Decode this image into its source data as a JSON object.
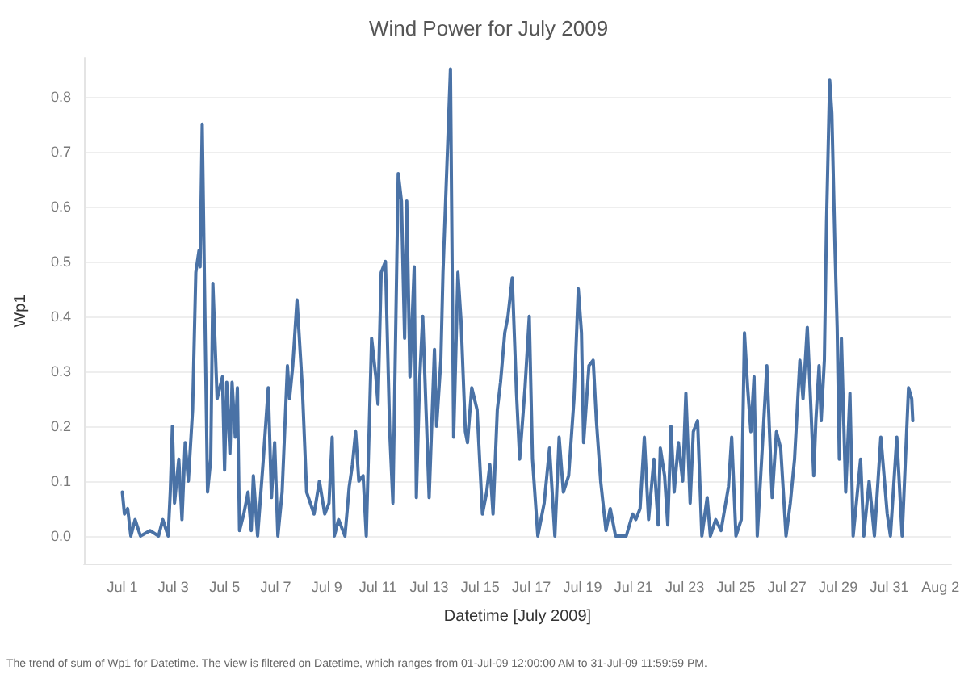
{
  "chart_data": {
    "type": "line",
    "title": "Wind Power for July 2009",
    "xlabel": "Datetime [July 2009]",
    "ylabel": "Wp1",
    "annotations": [
      "The trend of sum of Wp1 for Datetime. The view is filtered on Datetime, which ranges from 01-Jul-09 12:00:00 AM to 31-Jul-09 11:59:59 PM."
    ],
    "x": [
      "2009-07-01T00:00",
      "2009-07-01T02:00",
      "2009-07-01T05:00",
      "2009-07-01T08:00",
      "2009-07-01T12:00",
      "2009-07-01T17:00",
      "2009-07-02T02:00",
      "2009-07-02T10:00",
      "2009-07-02T14:00",
      "2009-07-02T19:00",
      "2009-07-02T21:00",
      "2009-07-02T23:00",
      "2009-07-03T01:00",
      "2009-07-03T05:00",
      "2009-07-03T08:00",
      "2009-07-03T11:00",
      "2009-07-03T14:00",
      "2009-07-03T18:00",
      "2009-07-03T21:00",
      "2009-07-04T00:00",
      "2009-07-04T01:00",
      "2009-07-04T03:00",
      "2009-07-04T06:00",
      "2009-07-04T08:00",
      "2009-07-04T11:00",
      "2009-07-04T13:00",
      "2009-07-04T17:00",
      "2009-07-04T22:00",
      "2009-07-05T00:00",
      "2009-07-05T02:00",
      "2009-07-05T05:00",
      "2009-07-05T07:00",
      "2009-07-05T10:00",
      "2009-07-05T12:00",
      "2009-07-05T14:00",
      "2009-07-05T18:00",
      "2009-07-05T22:00",
      "2009-07-06T01:00",
      "2009-07-06T03:00",
      "2009-07-06T07:00",
      "2009-07-06T12:00",
      "2009-07-06T17:00",
      "2009-07-06T20:00",
      "2009-07-06T23:00",
      "2009-07-07T02:00",
      "2009-07-07T06:00",
      "2009-07-07T11:00",
      "2009-07-07T13:00",
      "2009-07-07T16:00",
      "2009-07-07T20:00",
      "2009-07-08T01:00",
      "2009-07-08T05:00",
      "2009-07-08T12:00",
      "2009-07-08T17:00",
      "2009-07-08T22:00",
      "2009-07-09T02:00",
      "2009-07-09T05:00",
      "2009-07-09T07:00",
      "2009-07-09T11:00",
      "2009-07-09T17:00",
      "2009-07-09T21:00",
      "2009-07-10T00:00",
      "2009-07-10T03:00",
      "2009-07-10T06:00",
      "2009-07-10T10:00",
      "2009-07-10T13:00",
      "2009-07-10T18:00",
      "2009-07-10T22:00",
      "2009-07-11T00:00",
      "2009-07-11T03:00",
      "2009-07-11T07:00",
      "2009-07-11T11:00",
      "2009-07-11T14:00",
      "2009-07-11T19:00",
      "2009-07-11T22:00",
      "2009-07-12T01:00",
      "2009-07-12T03:00",
      "2009-07-12T06:00",
      "2009-07-12T10:00",
      "2009-07-12T12:00",
      "2009-07-12T15:00",
      "2009-07-12T18:00",
      "2009-07-13T00:00",
      "2009-07-13T05:00",
      "2009-07-13T07:00",
      "2009-07-13T11:00",
      "2009-07-13T13:00",
      "2009-07-13T20:00",
      "2009-07-13T23:00",
      "2009-07-14T03:00",
      "2009-07-14T06:00",
      "2009-07-14T10:00",
      "2009-07-14T12:00",
      "2009-07-14T16:00",
      "2009-07-14T21:00",
      "2009-07-15T02:00",
      "2009-07-15T06:00",
      "2009-07-15T09:00",
      "2009-07-15T12:00",
      "2009-07-15T16:00",
      "2009-07-15T19:00",
      "2009-07-15T23:00",
      "2009-07-16T02:00",
      "2009-07-16T06:00",
      "2009-07-16T10:00",
      "2009-07-16T13:00",
      "2009-07-16T18:00",
      "2009-07-16T22:00",
      "2009-07-17T01:00",
      "2009-07-17T06:00",
      "2009-07-17T12:00",
      "2009-07-17T17:00",
      "2009-07-17T22:00",
      "2009-07-18T02:00",
      "2009-07-18T06:00",
      "2009-07-18T11:00",
      "2009-07-18T16:00",
      "2009-07-18T20:00",
      "2009-07-18T23:00",
      "2009-07-19T01:00",
      "2009-07-19T06:00",
      "2009-07-19T10:00",
      "2009-07-19T13:00",
      "2009-07-19T17:00",
      "2009-07-19T22:00",
      "2009-07-20T02:00",
      "2009-07-20T07:00",
      "2009-07-20T17:00",
      "2009-07-20T23:00",
      "2009-07-21T02:00",
      "2009-07-21T06:00",
      "2009-07-21T10:00",
      "2009-07-21T14:00",
      "2009-07-21T19:00",
      "2009-07-21T23:00",
      "2009-07-22T01:00",
      "2009-07-22T05:00",
      "2009-07-22T08:00",
      "2009-07-22T11:00",
      "2009-07-22T14:00",
      "2009-07-22T18:00",
      "2009-07-22T22:00",
      "2009-07-23T01:00",
      "2009-07-23T05:00",
      "2009-07-23T08:00",
      "2009-07-23T12:00",
      "2009-07-23T16:00",
      "2009-07-23T21:00",
      "2009-07-24T00:00",
      "2009-07-24T05:00",
      "2009-07-24T10:00",
      "2009-07-24T17:00",
      "2009-07-24T20:00",
      "2009-07-25T00:00",
      "2009-07-25T05:00",
      "2009-07-25T08:00",
      "2009-07-25T11:00",
      "2009-07-25T14:00",
      "2009-07-25T17:00",
      "2009-07-25T20:00",
      "2009-07-26T01:00",
      "2009-07-26T05:00",
      "2009-07-26T10:00",
      "2009-07-26T14:00",
      "2009-07-26T18:00",
      "2009-07-26T23:00",
      "2009-07-27T03:00",
      "2009-07-27T07:00",
      "2009-07-27T12:00",
      "2009-07-27T15:00",
      "2009-07-27T19:00",
      "2009-07-27T22:00",
      "2009-07-28T01:00",
      "2009-07-28T03:00",
      "2009-07-28T06:00",
      "2009-07-28T08:00",
      "2009-07-28T11:00",
      "2009-07-28T13:00",
      "2009-07-28T16:00",
      "2009-07-28T18:00",
      "2009-07-28T21:00",
      "2009-07-28T23:00",
      "2009-07-29T01:00",
      "2009-07-29T03:00",
      "2009-07-29T07:00",
      "2009-07-29T11:00",
      "2009-07-29T14:00",
      "2009-07-29T21:00",
      "2009-07-30T00:00",
      "2009-07-30T05:00",
      "2009-07-30T10:00",
      "2009-07-30T16:00",
      "2009-07-30T22:00",
      "2009-07-31T01:00",
      "2009-07-31T07:00",
      "2009-07-31T12:00",
      "2009-07-31T18:00",
      "2009-07-31T21:00",
      "2009-07-31T22:00"
    ],
    "series": [
      {
        "color": "#4a72a6",
        "values": [
          0.08,
          0.04,
          0.05,
          0.0,
          0.03,
          0.0,
          0.01,
          0.0,
          0.03,
          0.0,
          0.08,
          0.2,
          0.06,
          0.14,
          0.03,
          0.17,
          0.1,
          0.23,
          0.48,
          0.52,
          0.49,
          0.75,
          0.34,
          0.08,
          0.14,
          0.46,
          0.25,
          0.29,
          0.12,
          0.28,
          0.15,
          0.28,
          0.18,
          0.27,
          0.01,
          0.04,
          0.08,
          0.01,
          0.11,
          0.0,
          0.13,
          0.27,
          0.07,
          0.17,
          0.0,
          0.08,
          0.31,
          0.25,
          0.31,
          0.43,
          0.27,
          0.08,
          0.04,
          0.1,
          0.04,
          0.06,
          0.18,
          0.0,
          0.03,
          0.0,
          0.09,
          0.13,
          0.19,
          0.1,
          0.11,
          0.0,
          0.36,
          0.29,
          0.24,
          0.48,
          0.5,
          0.19,
          0.06,
          0.66,
          0.61,
          0.36,
          0.61,
          0.29,
          0.49,
          0.07,
          0.28,
          0.4,
          0.07,
          0.34,
          0.2,
          0.32,
          0.48,
          0.85,
          0.18,
          0.48,
          0.39,
          0.19,
          0.17,
          0.27,
          0.23,
          0.04,
          0.08,
          0.13,
          0.04,
          0.23,
          0.28,
          0.37,
          0.4,
          0.47,
          0.26,
          0.14,
          0.27,
          0.4,
          0.14,
          0.0,
          0.06,
          0.16,
          0.0,
          0.18,
          0.08,
          0.11,
          0.25,
          0.45,
          0.37,
          0.17,
          0.31,
          0.32,
          0.21,
          0.1,
          0.01,
          0.05,
          0.0,
          0.0,
          0.04,
          0.03,
          0.05,
          0.18,
          0.03,
          0.14,
          0.02,
          0.16,
          0.11,
          0.02,
          0.2,
          0.08,
          0.17,
          0.1,
          0.26,
          0.06,
          0.19,
          0.21,
          0.0,
          0.07,
          0.0,
          0.03,
          0.01,
          0.09,
          0.18,
          0.0,
          0.03,
          0.37,
          0.27,
          0.19,
          0.29,
          0.0,
          0.17,
          0.31,
          0.07,
          0.19,
          0.16,
          0.0,
          0.06,
          0.14,
          0.32,
          0.25,
          0.38,
          0.25,
          0.11,
          0.21,
          0.31,
          0.21,
          0.32,
          0.57,
          0.83,
          0.77,
          0.52,
          0.38,
          0.14,
          0.36,
          0.08,
          0.26,
          0.0,
          0.14,
          0.0,
          0.1,
          0.0,
          0.18,
          0.04,
          0.0,
          0.18,
          0.0,
          0.27,
          0.25,
          0.21
        ]
      }
    ],
    "xlim": [
      "2009-06-29T12:00",
      "2009-08-02T10:00"
    ],
    "xticks": [
      {
        "value": "2009-07-01",
        "label": "Jul 1"
      },
      {
        "value": "2009-07-03",
        "label": "Jul 3"
      },
      {
        "value": "2009-07-05",
        "label": "Jul 5"
      },
      {
        "value": "2009-07-07",
        "label": "Jul 7"
      },
      {
        "value": "2009-07-09",
        "label": "Jul 9"
      },
      {
        "value": "2009-07-11",
        "label": "Jul 11"
      },
      {
        "value": "2009-07-13",
        "label": "Jul 13"
      },
      {
        "value": "2009-07-15",
        "label": "Jul 15"
      },
      {
        "value": "2009-07-17",
        "label": "Jul 17"
      },
      {
        "value": "2009-07-19",
        "label": "Jul 19"
      },
      {
        "value": "2009-07-21",
        "label": "Jul 21"
      },
      {
        "value": "2009-07-23",
        "label": "Jul 23"
      },
      {
        "value": "2009-07-25",
        "label": "Jul 25"
      },
      {
        "value": "2009-07-27",
        "label": "Jul 27"
      },
      {
        "value": "2009-07-29",
        "label": "Jul 29"
      },
      {
        "value": "2009-07-31",
        "label": "Jul 31"
      },
      {
        "value": "2009-08-02",
        "label": "Aug 2"
      }
    ],
    "ylim": [
      -0.05,
      0.87
    ],
    "yticks": [
      {
        "value": 0,
        "label": "0.0"
      },
      0.1,
      0.2,
      0.3,
      0.4,
      0.5,
      0.6,
      0.7,
      0.8
    ],
    "grid": "y",
    "marker": "none",
    "line_style": "solid"
  }
}
